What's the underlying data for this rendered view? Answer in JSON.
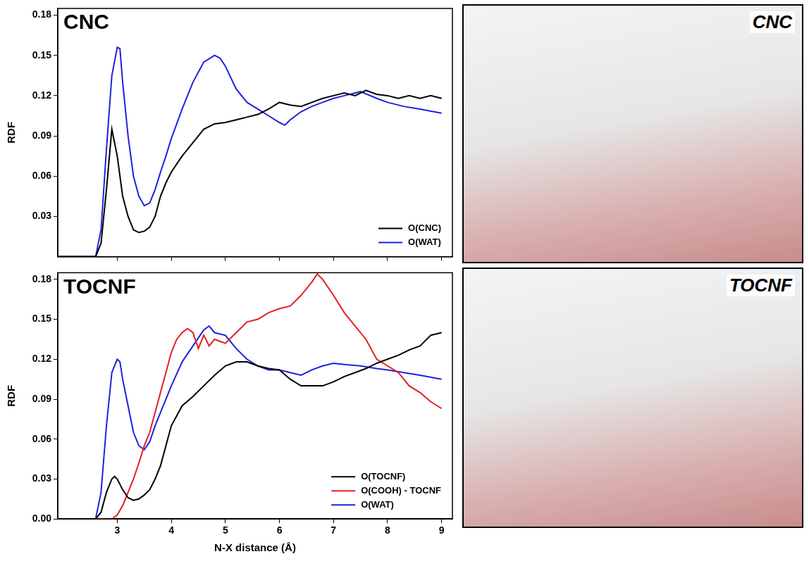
{
  "chart_data": [
    {
      "type": "line",
      "title": "CNC",
      "y_label": "RDF",
      "tick_labels": "y",
      "legend": "lower right",
      "grid": false,
      "xlim": [
        1.9,
        9.2
      ],
      "xticks": [
        3,
        4,
        5,
        6,
        7,
        8,
        9
      ],
      "ylim": [
        0,
        0.185
      ],
      "yticks": [
        0.03,
        0.06,
        0.09,
        0.12,
        0.15,
        0.18
      ],
      "series": [
        {
          "name": "O(CNC)",
          "color": "#000000",
          "x": [
            1.9,
            2.6,
            2.7,
            2.8,
            2.9,
            3.0,
            3.1,
            3.2,
            3.3,
            3.4,
            3.5,
            3.6,
            3.7,
            3.8,
            3.9,
            4.0,
            4.2,
            4.4,
            4.6,
            4.8,
            5.0,
            5.2,
            5.4,
            5.6,
            5.8,
            6.0,
            6.2,
            6.4,
            6.6,
            6.8,
            7.0,
            7.2,
            7.4,
            7.6,
            7.8,
            8.0,
            8.2,
            8.4,
            8.6,
            8.8,
            9.0
          ],
          "values": [
            0,
            0,
            0.01,
            0.05,
            0.095,
            0.075,
            0.045,
            0.03,
            0.02,
            0.018,
            0.019,
            0.022,
            0.03,
            0.045,
            0.055,
            0.063,
            0.075,
            0.085,
            0.095,
            0.099,
            0.1,
            0.102,
            0.104,
            0.106,
            0.11,
            0.115,
            0.113,
            0.112,
            0.115,
            0.118,
            0.12,
            0.122,
            0.12,
            0.124,
            0.121,
            0.12,
            0.118,
            0.12,
            0.118,
            0.12,
            0.118
          ]
        },
        {
          "name": "O(WAT)",
          "color": "#2020e0",
          "x": [
            1.9,
            2.6,
            2.7,
            2.8,
            2.9,
            3.0,
            3.05,
            3.1,
            3.2,
            3.3,
            3.4,
            3.5,
            3.6,
            3.7,
            3.8,
            3.9,
            4.0,
            4.2,
            4.4,
            4.6,
            4.8,
            4.9,
            5.0,
            5.2,
            5.4,
            5.6,
            5.8,
            6.0,
            6.1,
            6.2,
            6.4,
            6.6,
            6.8,
            7.0,
            7.2,
            7.5,
            7.8,
            8.0,
            8.3,
            8.6,
            9.0
          ],
          "values": [
            0,
            0,
            0.02,
            0.08,
            0.135,
            0.156,
            0.155,
            0.13,
            0.09,
            0.06,
            0.045,
            0.038,
            0.04,
            0.05,
            0.063,
            0.075,
            0.088,
            0.11,
            0.13,
            0.145,
            0.15,
            0.148,
            0.142,
            0.125,
            0.115,
            0.11,
            0.105,
            0.1,
            0.098,
            0.102,
            0.108,
            0.112,
            0.115,
            0.118,
            0.12,
            0.123,
            0.118,
            0.115,
            0.112,
            0.11,
            0.107
          ]
        }
      ]
    },
    {
      "type": "line",
      "title": "TOCNF",
      "x_label": "N-X distance (Å)",
      "y_label": "RDF",
      "legend": "lower right",
      "grid": false,
      "xlim": [
        1.9,
        9.2
      ],
      "xticks": [
        3,
        4,
        5,
        6,
        7,
        8,
        9
      ],
      "ylim": [
        0,
        0.185
      ],
      "yticks": [
        {
          "value": 0,
          "label": "0.00"
        },
        0.03,
        0.06,
        0.09,
        0.12,
        0.15,
        0.18
      ],
      "series": [
        {
          "name": "O(TOCNF)",
          "color": "#000000",
          "x": [
            1.9,
            2.6,
            2.7,
            2.8,
            2.9,
            2.95,
            3.0,
            3.1,
            3.2,
            3.3,
            3.4,
            3.5,
            3.6,
            3.7,
            3.8,
            3.9,
            4.0,
            4.2,
            4.4,
            4.6,
            4.8,
            5.0,
            5.2,
            5.4,
            5.6,
            5.8,
            6.0,
            6.2,
            6.4,
            6.6,
            6.8,
            7.0,
            7.2,
            7.4,
            7.6,
            7.8,
            8.0,
            8.2,
            8.4,
            8.6,
            8.8,
            9.0
          ],
          "values": [
            0,
            0,
            0.005,
            0.02,
            0.03,
            0.032,
            0.03,
            0.022,
            0.016,
            0.014,
            0.015,
            0.018,
            0.022,
            0.03,
            0.04,
            0.055,
            0.07,
            0.085,
            0.092,
            0.1,
            0.108,
            0.115,
            0.118,
            0.118,
            0.115,
            0.113,
            0.112,
            0.105,
            0.1,
            0.1,
            0.1,
            0.103,
            0.107,
            0.11,
            0.113,
            0.117,
            0.12,
            0.123,
            0.127,
            0.13,
            0.138,
            0.14
          ]
        },
        {
          "name": "O(COOH) - TOCNF",
          "color": "#e02020",
          "x": [
            1.9,
            2.9,
            3.0,
            3.1,
            3.2,
            3.3,
            3.4,
            3.5,
            3.6,
            3.7,
            3.8,
            3.9,
            4.0,
            4.1,
            4.2,
            4.3,
            4.4,
            4.5,
            4.6,
            4.7,
            4.8,
            5.0,
            5.2,
            5.4,
            5.6,
            5.8,
            6.0,
            6.2,
            6.4,
            6.6,
            6.7,
            6.8,
            7.0,
            7.2,
            7.4,
            7.6,
            7.8,
            8.0,
            8.2,
            8.4,
            8.6,
            8.8,
            9.0
          ],
          "values": [
            0,
            0,
            0.003,
            0.01,
            0.02,
            0.03,
            0.042,
            0.055,
            0.065,
            0.08,
            0.095,
            0.11,
            0.125,
            0.135,
            0.14,
            0.143,
            0.14,
            0.128,
            0.138,
            0.13,
            0.135,
            0.132,
            0.14,
            0.148,
            0.15,
            0.155,
            0.158,
            0.16,
            0.168,
            0.178,
            0.184,
            0.18,
            0.168,
            0.155,
            0.145,
            0.135,
            0.12,
            0.115,
            0.11,
            0.1,
            0.095,
            0.088,
            0.083
          ]
        },
        {
          "name": "O(WAT)",
          "color": "#2020e0",
          "x": [
            1.9,
            2.6,
            2.7,
            2.8,
            2.9,
            3.0,
            3.05,
            3.1,
            3.2,
            3.3,
            3.4,
            3.5,
            3.6,
            3.7,
            3.8,
            3.9,
            4.0,
            4.2,
            4.4,
            4.6,
            4.7,
            4.8,
            5.0,
            5.2,
            5.4,
            5.6,
            5.8,
            6.0,
            6.2,
            6.4,
            6.6,
            6.8,
            7.0,
            7.2,
            7.5,
            7.8,
            8.0,
            8.3,
            8.6,
            9.0
          ],
          "values": [
            0,
            0,
            0.02,
            0.07,
            0.11,
            0.12,
            0.118,
            0.105,
            0.085,
            0.065,
            0.055,
            0.052,
            0.058,
            0.07,
            0.08,
            0.09,
            0.1,
            0.118,
            0.13,
            0.142,
            0.145,
            0.14,
            0.138,
            0.128,
            0.12,
            0.115,
            0.112,
            0.112,
            0.11,
            0.108,
            0.112,
            0.115,
            0.117,
            0.116,
            0.115,
            0.113,
            0.112,
            0.11,
            0.108,
            0.105
          ]
        }
      ]
    }
  ],
  "images": [
    {
      "title": "CNC"
    },
    {
      "title": "TOCNF"
    }
  ]
}
